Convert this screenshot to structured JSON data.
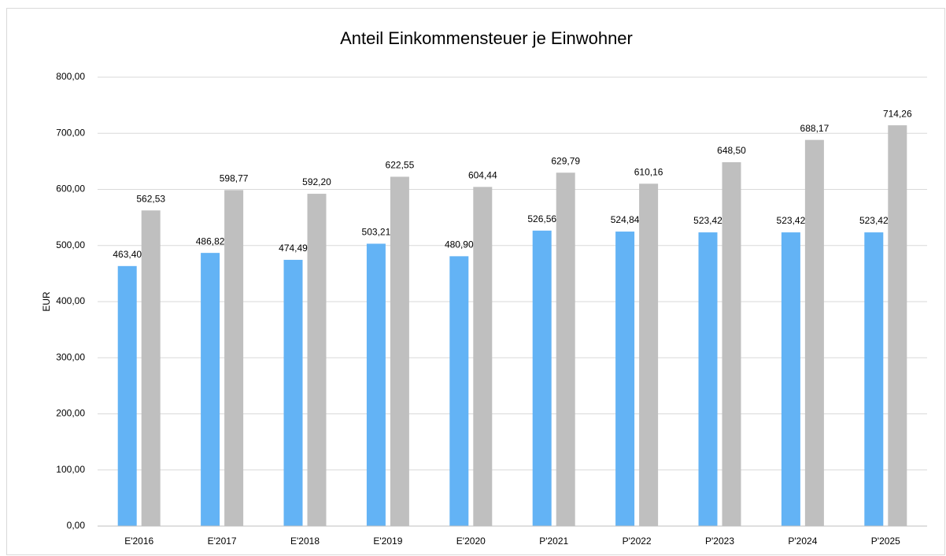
{
  "chart_data": {
    "type": "bar",
    "title": "Anteil Einkommensteuer je Einwohner",
    "y_label": "EUR",
    "categories": [
      "E'2016",
      "E'2017",
      "E'2018",
      "E'2019",
      "E'2020",
      "P'2021",
      "P'2022",
      "P'2023",
      "P'2024",
      "P'2025"
    ],
    "series": [
      {
        "color": "#63b3f5",
        "values": [
          463.4,
          486.82,
          474.49,
          503.21,
          480.9,
          526.56,
          524.84,
          523.42,
          523.42,
          523.42
        ],
        "value_labels": [
          "463,40",
          "486,82",
          "474,49",
          "503,21",
          "480,90",
          "526,56",
          "524,84",
          "523,42",
          "523,42",
          "523,42"
        ]
      },
      {
        "color": "#bfbfbf",
        "values": [
          562.53,
          598.77,
          592.2,
          622.55,
          604.44,
          629.79,
          610.16,
          648.5,
          688.17,
          714.26
        ],
        "value_labels": [
          "562,53",
          "598,77",
          "592,20",
          "622,55",
          "604,44",
          "629,79",
          "610,16",
          "648,50",
          "688,17",
          "714,26"
        ]
      }
    ],
    "ylim": [
      0,
      800
    ],
    "yticks": [
      {
        "value": 0,
        "label": "0,00"
      },
      {
        "value": 100,
        "label": "100,00"
      },
      {
        "value": 200,
        "label": "200,00"
      },
      {
        "value": 300,
        "label": "300,00"
      },
      {
        "value": 400,
        "label": "400,00"
      },
      {
        "value": 500,
        "label": "500,00"
      },
      {
        "value": 600,
        "label": "600,00"
      },
      {
        "value": 700,
        "label": "700,00"
      },
      {
        "value": 800,
        "label": "800,00"
      }
    ],
    "grid": true
  }
}
